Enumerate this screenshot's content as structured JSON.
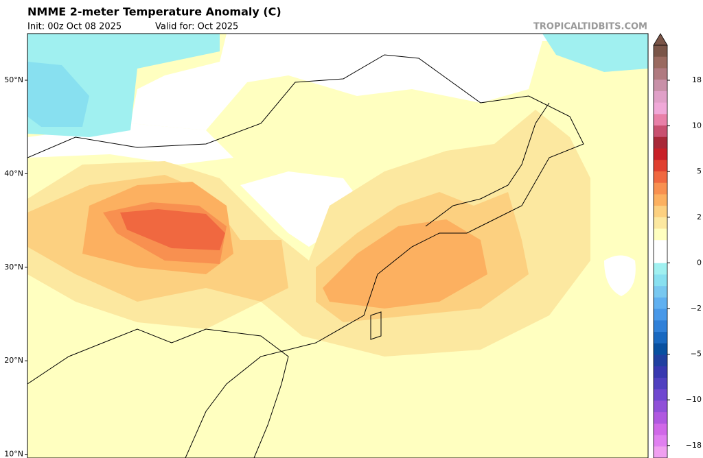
{
  "header": {
    "title": "NMME 2-meter Temperature Anomaly (C)",
    "init": "Init: 00z Oct 08 2025",
    "valid": "Valid for: Oct 2025",
    "watermark": "TROPICALTIDBITS.COM"
  },
  "map": {
    "lat_ticks": [
      {
        "value": 50,
        "label": "50°N"
      },
      {
        "value": 40,
        "label": "40°N"
      },
      {
        "value": 30,
        "label": "30°N"
      },
      {
        "value": 20,
        "label": "20°N"
      },
      {
        "value": 10,
        "label": "10°N"
      }
    ]
  },
  "colorbar": {
    "ticks": [
      {
        "value": 18,
        "label": "18"
      },
      {
        "value": 10,
        "label": "10"
      },
      {
        "value": 5,
        "label": "5"
      },
      {
        "value": 2,
        "label": "2"
      },
      {
        "value": 0,
        "label": "0"
      },
      {
        "value": -2,
        "label": "−2"
      },
      {
        "value": -5,
        "label": "−5"
      },
      {
        "value": -10,
        "label": "−10"
      },
      {
        "value": -18,
        "label": "−18"
      }
    ],
    "colors": [
      "#7a5548",
      "#9a6a60",
      "#b07a80",
      "#c890a8",
      "#e0a0c8",
      "#f0a8d8",
      "#e880a8",
      "#c85070",
      "#a82838",
      "#c82028",
      "#e04030",
      "#f06840",
      "#f89050",
      "#fcb060",
      "#fcd080",
      "#fce8a0",
      "#ffffc0",
      "#ffffff",
      "#ffffff",
      "#a0f0f0",
      "#88e0f0",
      "#78c8f0",
      "#60b0f0",
      "#4898e8",
      "#3080d8",
      "#1868c0",
      "#0850a0",
      "#2040a0",
      "#3838b0",
      "#5040c0",
      "#7048d0",
      "#9050d8",
      "#b058e0",
      "#d068e8",
      "#e080f0",
      "#f0a0f0"
    ]
  }
}
